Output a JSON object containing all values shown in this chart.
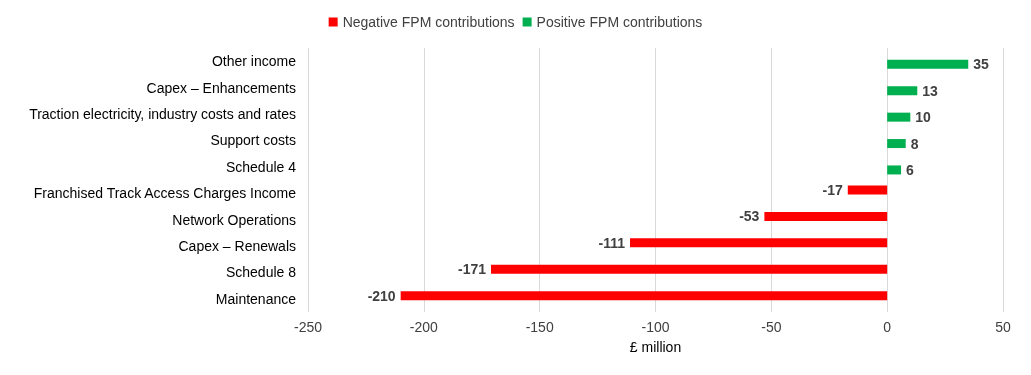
{
  "chart_data": {
    "type": "bar",
    "orientation": "horizontal",
    "xlabel": "£ million",
    "categories": [
      "Other income",
      "Capex – Enhancements",
      "Traction electricity, industry costs and rates",
      "Support costs",
      "Schedule 4",
      "Franchised Track Access Charges Income",
      "Network Operations",
      "Capex – Renewals",
      "Schedule 8",
      "Maintenance"
    ],
    "series": [
      {
        "name": "Negative FPM contributions",
        "color": "#ff0000",
        "values": [
          null,
          null,
          null,
          null,
          null,
          -17,
          -53,
          -111,
          -171,
          -210
        ]
      },
      {
        "name": "Positive FPM contributions",
        "color": "#00b050",
        "values": [
          35,
          13,
          10,
          8,
          6,
          null,
          null,
          null,
          null,
          null
        ]
      }
    ],
    "xlim": [
      -250,
      50
    ],
    "xticks": [
      -250,
      -200,
      -150,
      -100,
      -50,
      0,
      50
    ],
    "grid": "x",
    "legend": "top",
    "data_labels": true
  }
}
